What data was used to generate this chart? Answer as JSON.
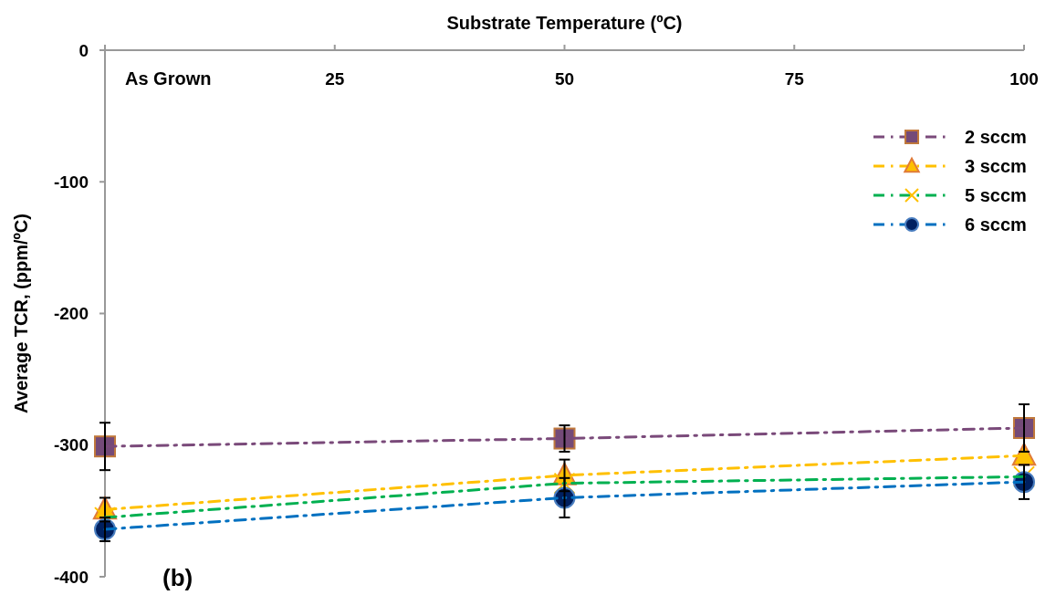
{
  "chart_data": {
    "type": "line",
    "xlabel": "Substrate Temperature (ºC)",
    "ylabel": "Average TCR, (ppm/ºC)",
    "x": [
      0,
      50,
      100
    ],
    "xlim": [
      0,
      100
    ],
    "xticks": [
      {
        "value": 0,
        "label": null
      },
      25,
      50,
      75,
      100
    ],
    "ylim": [
      -400,
      0
    ],
    "yticks": [
      0,
      -100,
      -200,
      -300,
      -400
    ],
    "grid": false,
    "legend": "top right",
    "line_style": "dashed",
    "annotations": [
      "As Grown",
      "(b)"
    ],
    "series": [
      {
        "name": "2 sccm",
        "color": "#7a4a7a",
        "marker": "square",
        "values": [
          -301,
          -295,
          -287
        ],
        "errors": [
          18,
          10,
          18
        ]
      },
      {
        "name": "3 sccm",
        "color": "#ffc000",
        "marker": "triangle",
        "values": [
          -349,
          -323,
          -308
        ],
        "errors": [
          9,
          12,
          null
        ]
      },
      {
        "name": "5 sccm",
        "color": "#00b050",
        "marker": "cross",
        "values": [
          -355,
          -329,
          -324
        ]
      },
      {
        "name": "6 sccm",
        "color": "#0070c0",
        "marker": "circle",
        "values": [
          -364,
          -340,
          -328
        ],
        "errors": [
          9,
          15,
          13
        ]
      }
    ]
  }
}
